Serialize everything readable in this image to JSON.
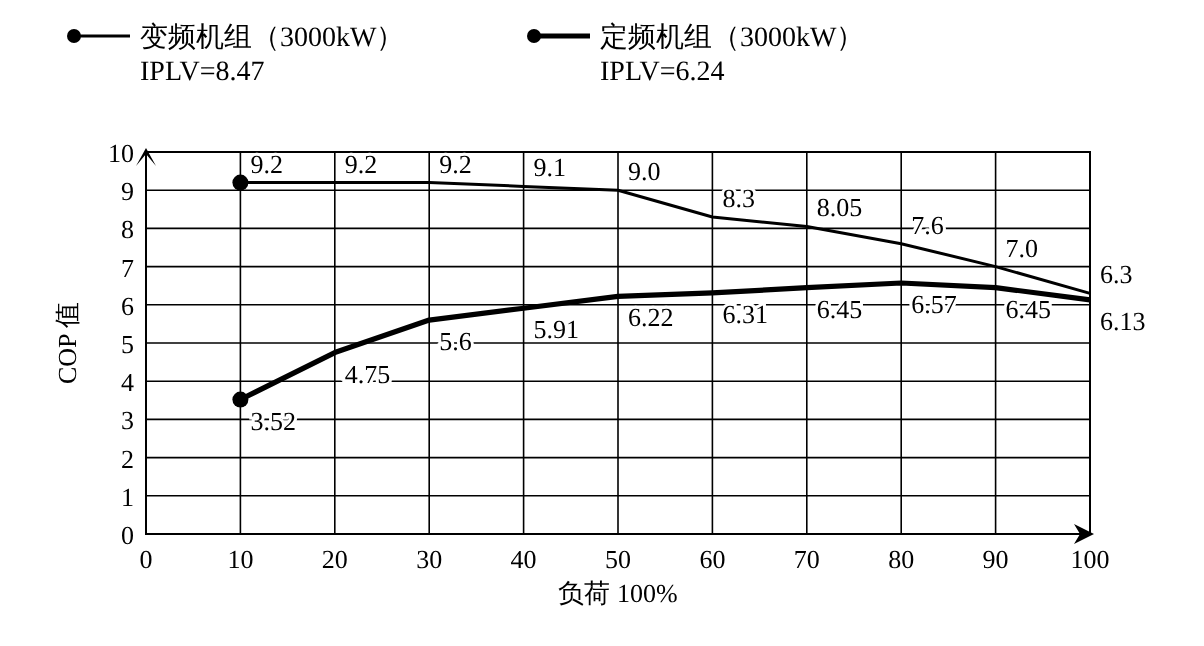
{
  "chart_data": {
    "type": "line",
    "xlabel": "负荷 100%",
    "ylabel": "COP 值",
    "x": [
      10,
      20,
      30,
      40,
      50,
      60,
      70,
      80,
      90,
      100
    ],
    "series": [
      {
        "name": "变频机组（3000kW）",
        "color": "#000000",
        "values": [
          9.2,
          9.2,
          9.2,
          9.1,
          9.0,
          8.3,
          8.05,
          7.6,
          7.0,
          6.3
        ],
        "value_labels": [
          "9.2",
          "9.2",
          "9.2",
          "9.1",
          "9.0",
          "8.3",
          "8.05",
          "7.6",
          "7.0",
          "6.3"
        ]
      },
      {
        "name": "定频机组（3000kW）",
        "color": "#000000",
        "values": [
          3.52,
          4.75,
          5.6,
          5.91,
          6.22,
          6.31,
          6.45,
          6.57,
          6.45,
          6.13
        ],
        "value_labels": [
          "3.52",
          "4.75",
          "5.6",
          "5.91",
          "6.22",
          "6.31",
          "6.45",
          "6.57",
          "6.45",
          "6.13"
        ]
      }
    ],
    "annotations": [
      "IPLV=8.47",
      "IPLV=6.24"
    ],
    "xlim": [
      0,
      100
    ],
    "xticks": [
      0,
      10,
      20,
      30,
      40,
      50,
      60,
      70,
      80,
      90,
      100
    ],
    "ylim": [
      0,
      10
    ],
    "yticks": [
      0,
      1,
      2,
      3,
      4,
      5,
      6,
      7,
      8,
      9,
      10
    ],
    "grid": true,
    "legend": "top",
    "line_style": "solid"
  }
}
